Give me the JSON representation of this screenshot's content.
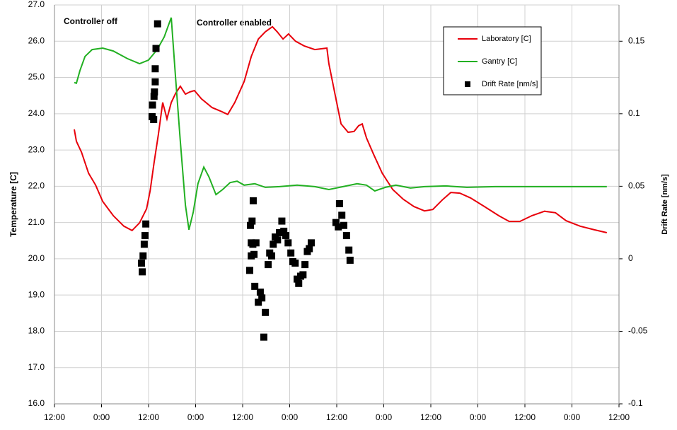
{
  "chart_data": {
    "type": "line",
    "annotations": [
      "Controller off",
      "Controller enabled"
    ],
    "ylabel": "Temperature [C]",
    "y2label": "Drift Rate [nm/s]",
    "xlim": [
      0,
      144
    ],
    "xticks": [
      {
        "value": 0,
        "label": "12:00"
      },
      {
        "value": 12,
        "label": "0:00"
      },
      {
        "value": 24,
        "label": "12:00"
      },
      {
        "value": 36,
        "label": "0:00"
      },
      {
        "value": 48,
        "label": "12:00"
      },
      {
        "value": 60,
        "label": "0:00"
      },
      {
        "value": 72,
        "label": "12:00"
      },
      {
        "value": 84,
        "label": "0:00"
      },
      {
        "value": 96,
        "label": "12:00"
      },
      {
        "value": 108,
        "label": "0:00"
      },
      {
        "value": 120,
        "label": "12:00"
      },
      {
        "value": 132,
        "label": "0:00"
      },
      {
        "value": 144,
        "label": "12:00"
      }
    ],
    "ylim": [
      16,
      27
    ],
    "yticks": [
      {
        "value": 16,
        "label": "16.0"
      },
      {
        "value": 17,
        "label": "17.0"
      },
      {
        "value": 18,
        "label": "18.0"
      },
      {
        "value": 19,
        "label": "19.0"
      },
      {
        "value": 20,
        "label": "20.0"
      },
      {
        "value": 21,
        "label": "21.0"
      },
      {
        "value": 22,
        "label": "22.0"
      },
      {
        "value": 23,
        "label": "23.0"
      },
      {
        "value": 24,
        "label": "24.0"
      },
      {
        "value": 25,
        "label": "25.0"
      },
      {
        "value": 26,
        "label": "26.0"
      },
      {
        "value": 27,
        "label": "27.0"
      }
    ],
    "y2lim": [
      -0.1,
      0.175
    ],
    "y2ticks": [
      -0.1,
      -0.05,
      0,
      0.05,
      0.1,
      0.15
    ],
    "grid": true,
    "legend": "top-right",
    "series": [
      {
        "name": "Laboratory [C]",
        "color": "#e8000b",
        "type": "line",
        "x": [
          5.05,
          5.6,
          6.9,
          8.7,
          10.5,
          12.3,
          15.0,
          17.7,
          19.8,
          21.7,
          23.5,
          24.4,
          25.4,
          26.5,
          27.6,
          28.7,
          29.8,
          30.9,
          32.1,
          33.4,
          34.5,
          35.7,
          37.5,
          40.2,
          42.6,
          44.2,
          46.0,
          48.4,
          50.2,
          52.0,
          53.8,
          55.6,
          56.8,
          58.3,
          59.7,
          61.5,
          63.7,
          66.4,
          69.5,
          70.0,
          71.8,
          73.1,
          74.9,
          76.4,
          77.6,
          78.5,
          79.6,
          81.4,
          83.6,
          86.3,
          89.0,
          91.7,
          94.4,
          96.5,
          98.9,
          101.1,
          103.4,
          106.1,
          109.7,
          113.3,
          116.0,
          118.7,
          121.8,
          125.0,
          127.8,
          130.5,
          134.1,
          137.7,
          140.9
        ],
        "values": [
          23.57,
          23.24,
          22.94,
          22.36,
          22.03,
          21.58,
          21.19,
          20.9,
          20.78,
          20.99,
          21.38,
          21.87,
          22.65,
          23.43,
          24.31,
          23.86,
          24.31,
          24.56,
          24.76,
          24.54,
          24.6,
          24.64,
          24.41,
          24.17,
          24.06,
          23.98,
          24.31,
          24.89,
          25.58,
          26.06,
          26.26,
          26.4,
          26.26,
          26.06,
          26.2,
          26.0,
          25.87,
          25.77,
          25.81,
          25.38,
          24.41,
          23.72,
          23.49,
          23.51,
          23.67,
          23.72,
          23.33,
          22.88,
          22.36,
          21.91,
          21.64,
          21.44,
          21.32,
          21.36,
          21.62,
          21.83,
          21.81,
          21.68,
          21.44,
          21.19,
          21.03,
          21.03,
          21.19,
          21.31,
          21.27,
          21.05,
          20.9,
          20.8,
          20.72
        ]
      },
      {
        "name": "Gantry [C]",
        "color": "#22b022",
        "type": "line",
        "x": [
          5.05,
          5.6,
          6.5,
          7.8,
          9.6,
          12.3,
          15.0,
          18.6,
          21.7,
          24.0,
          26.2,
          28.0,
          29.1,
          29.8,
          30.9,
          32.1,
          33.4,
          34.3,
          35.4,
          36.6,
          38.1,
          39.4,
          41.2,
          42.9,
          44.8,
          46.6,
          48.4,
          51.1,
          53.8,
          57.4,
          61.9,
          66.4,
          70.0,
          73.6,
          77.2,
          79.6,
          81.7,
          84.4,
          87.1,
          90.8,
          94.4,
          99.8,
          105.2,
          112.4,
          121.4,
          130.5,
          140.9
        ],
        "values": [
          24.86,
          24.84,
          25.19,
          25.58,
          25.77,
          25.81,
          25.73,
          25.52,
          25.38,
          25.48,
          25.77,
          26.12,
          26.45,
          26.65,
          24.99,
          23.24,
          21.48,
          20.8,
          21.29,
          22.07,
          22.53,
          22.26,
          21.77,
          21.91,
          22.1,
          22.14,
          22.03,
          22.07,
          21.97,
          21.99,
          22.03,
          21.99,
          21.91,
          21.99,
          22.07,
          22.03,
          21.87,
          21.97,
          22.03,
          21.95,
          21.99,
          22.01,
          21.97,
          21.99,
          21.99,
          21.99,
          21.99
        ]
      },
      {
        "name": "Drift Rate [nm/s]",
        "color": "#000000",
        "type": "scatter",
        "axis": "y2",
        "x": [
          26.3,
          25.9,
          25.7,
          25.7,
          25.5,
          25.4,
          25.0,
          24.9,
          25.3,
          23.3,
          23.1,
          22.9,
          22.6,
          22.2,
          22.4,
          49.8,
          50.2,
          50.6,
          50.0,
          50.4,
          50.7,
          50.2,
          50.9,
          51.4,
          51.1,
          52.0,
          52.5,
          52.9,
          53.8,
          53.4,
          54.5,
          54.9,
          55.4,
          55.8,
          56.3,
          56.9,
          57.4,
          58.0,
          58.5,
          59.0,
          59.6,
          60.3,
          60.8,
          61.4,
          61.9,
          62.3,
          62.8,
          63.4,
          63.9,
          64.5,
          65.0,
          65.5,
          71.8,
          72.4,
          72.7,
          73.3,
          73.8,
          74.5,
          75.1,
          75.4
        ],
        "values": [
          0.162,
          0.145,
          0.131,
          0.122,
          0.115,
          0.112,
          0.106,
          0.098,
          0.096,
          0.024,
          0.016,
          0.01,
          0.002,
          -0.003,
          -0.009,
          -0.008,
          0.002,
          0.01,
          0.023,
          0.026,
          0.04,
          0.011,
          0.003,
          0.011,
          -0.019,
          -0.03,
          -0.023,
          -0.027,
          -0.037,
          -0.054,
          -0.004,
          0.004,
          0.002,
          0.01,
          0.015,
          0.013,
          0.018,
          0.026,
          0.019,
          0.016,
          0.011,
          0.004,
          -0.002,
          -0.003,
          -0.014,
          -0.017,
          -0.012,
          -0.011,
          -0.004,
          0.005,
          0.007,
          0.011,
          0.025,
          0.022,
          0.038,
          0.03,
          0.023,
          0.016,
          0.006,
          -0.001
        ]
      }
    ]
  }
}
